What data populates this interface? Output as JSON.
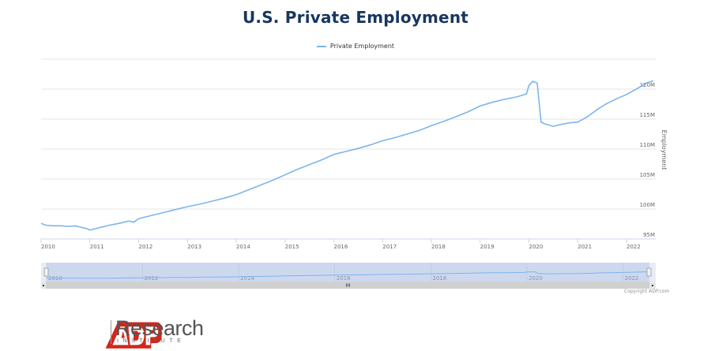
{
  "chart_data": {
    "type": "line",
    "title": "U.S. Private Employment",
    "legend": [
      "Private Employment"
    ],
    "legend_position": "top-center",
    "xlabel": "",
    "ylabel": "Employment",
    "x_ticks": [
      "2010",
      "2011",
      "2012",
      "2013",
      "2014",
      "2015",
      "2016",
      "2017",
      "2018",
      "2019",
      "2020",
      "2021",
      "2022"
    ],
    "y_ticks": [
      "95M",
      "100M",
      "105M",
      "110M",
      "115M",
      "120M"
    ],
    "ylim": [
      95,
      125
    ],
    "xlim": [
      2010.0,
      2022.6
    ],
    "grid": true,
    "line_color": "#7cb5ec",
    "series": [
      {
        "name": "Private Employment",
        "x": [
          2010.0,
          2010.1,
          2010.25,
          2010.4,
          2010.55,
          2010.7,
          2010.85,
          2010.95,
          2011.0,
          2011.2,
          2011.4,
          2011.6,
          2011.8,
          2011.9,
          2012.0,
          2012.1,
          2012.25,
          2012.5,
          2012.75,
          2013.0,
          2013.25,
          2013.5,
          2013.75,
          2014.0,
          2014.25,
          2014.5,
          2014.75,
          2015.0,
          2015.25,
          2015.5,
          2015.75,
          2016.0,
          2016.25,
          2016.5,
          2016.75,
          2017.0,
          2017.25,
          2017.5,
          2017.75,
          2018.0,
          2018.25,
          2018.5,
          2018.75,
          2019.0,
          2019.25,
          2019.5,
          2019.75,
          2019.95,
          2020.0,
          2020.08,
          2020.17,
          2020.25,
          2020.33,
          2020.5,
          2020.7,
          2020.85,
          2021.0,
          2021.2,
          2021.4,
          2021.6,
          2021.8,
          2022.0,
          2022.2,
          2022.4,
          2022.55
        ],
        "values": [
          97.6,
          97.3,
          97.2,
          97.2,
          97.1,
          97.2,
          96.9,
          96.7,
          96.5,
          96.9,
          97.3,
          97.6,
          98.0,
          97.8,
          98.4,
          98.6,
          98.9,
          99.4,
          99.9,
          100.4,
          100.8,
          101.3,
          101.8,
          102.4,
          103.2,
          104.0,
          104.8,
          105.7,
          106.6,
          107.4,
          108.2,
          109.1,
          109.6,
          110.1,
          110.7,
          111.4,
          111.9,
          112.5,
          113.1,
          113.9,
          114.6,
          115.4,
          116.2,
          117.2,
          117.8,
          118.3,
          118.7,
          119.2,
          120.6,
          121.3,
          121.0,
          114.5,
          114.2,
          113.8,
          114.2,
          114.4,
          114.5,
          115.4,
          116.6,
          117.6,
          118.4,
          119.1,
          120.0,
          121.0,
          121.4
        ]
      }
    ],
    "navigator": {
      "x_ticks": [
        "2010",
        "2012",
        "2014",
        "2016",
        "2018",
        "2020",
        "2022"
      ]
    }
  },
  "copyright": "Copyright ADP.com",
  "logo": {
    "brand": "ADP",
    "name": "Research",
    "subtitle": "INSTITUTE"
  }
}
